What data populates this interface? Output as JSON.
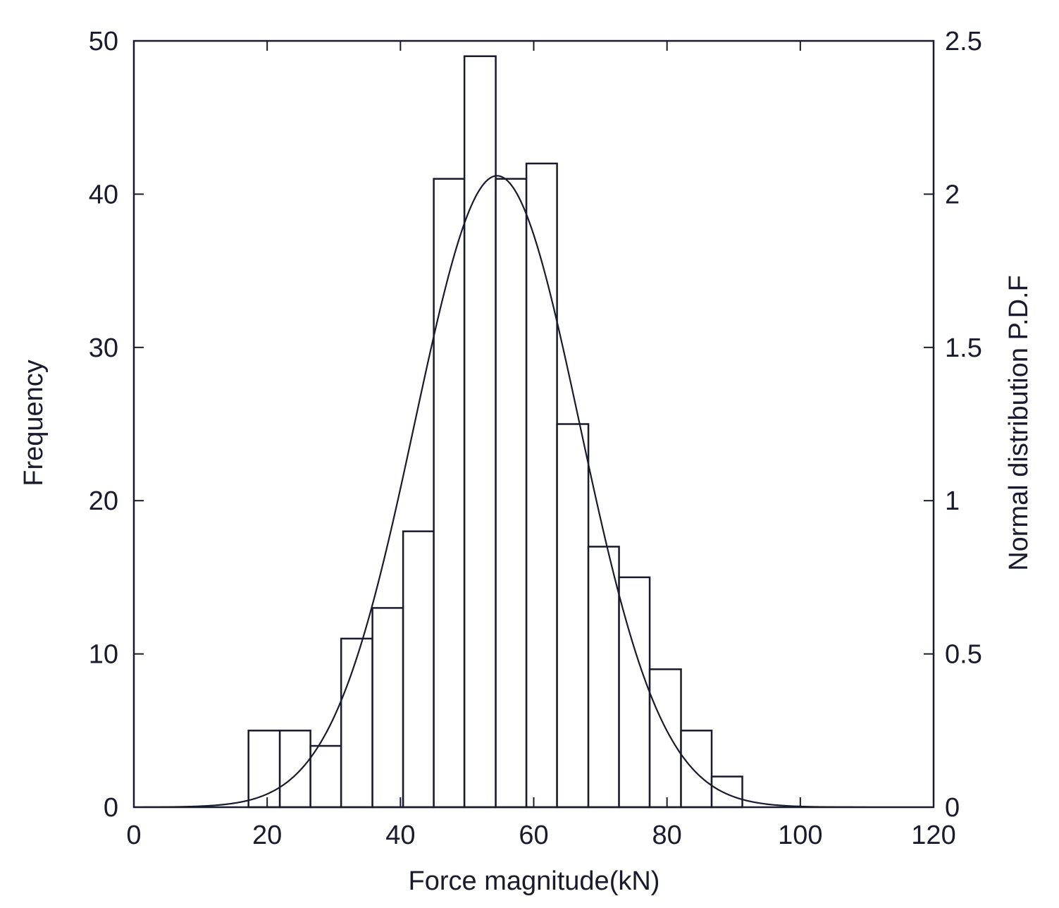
{
  "chart_data": {
    "type": "bar",
    "xlabel": "Force magnitude(kN)",
    "ylabel": "Frequency",
    "ylabel_right": "Normal distribution P.D.F",
    "xlim": [
      0,
      120
    ],
    "ylim": [
      0,
      50
    ],
    "ylim_right": [
      0,
      2.5
    ],
    "x_ticks": [
      0,
      20,
      40,
      60,
      80,
      100,
      120
    ],
    "y_ticks": [
      0,
      10,
      20,
      30,
      40,
      50
    ],
    "y_ticks_right": [
      0,
      0.5,
      1,
      1.5,
      2,
      2.5
    ],
    "grid": false,
    "bins": [
      {
        "x0": 17.2,
        "x1": 21.9,
        "value": 5
      },
      {
        "x0": 21.9,
        "x1": 26.5,
        "value": 5
      },
      {
        "x0": 26.5,
        "x1": 31.1,
        "value": 4
      },
      {
        "x0": 31.1,
        "x1": 35.8,
        "value": 11
      },
      {
        "x0": 35.8,
        "x1": 40.4,
        "value": 13
      },
      {
        "x0": 40.4,
        "x1": 45.0,
        "value": 18
      },
      {
        "x0": 45.0,
        "x1": 49.6,
        "value": 41
      },
      {
        "x0": 49.6,
        "x1": 54.3,
        "value": 49
      },
      {
        "x0": 54.3,
        "x1": 58.9,
        "value": 41
      },
      {
        "x0": 58.9,
        "x1": 63.5,
        "value": 42
      },
      {
        "x0": 63.5,
        "x1": 68.2,
        "value": 25
      },
      {
        "x0": 68.2,
        "x1": 72.8,
        "value": 17
      },
      {
        "x0": 72.8,
        "x1": 77.4,
        "value": 15
      },
      {
        "x0": 77.4,
        "x1": 82.1,
        "value": 9
      },
      {
        "x0": 82.1,
        "x1": 86.7,
        "value": 5
      },
      {
        "x0": 86.7,
        "x1": 91.3,
        "value": 2
      }
    ],
    "normal_fit": {
      "axis": "right",
      "mean": 54.5,
      "std_dev": 12.4,
      "peak": 2.06,
      "x_range": [
        0,
        110
      ]
    }
  }
}
